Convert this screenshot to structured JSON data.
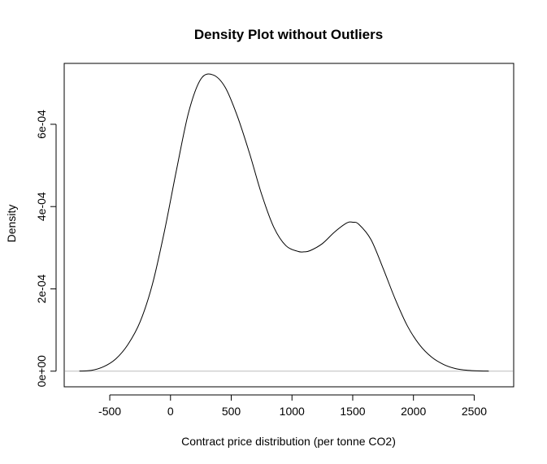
{
  "chart_data": {
    "type": "line",
    "title": "Density Plot without Outliers",
    "xlabel": "Contract price distribution (per tonne CO2)",
    "ylabel": "Density",
    "xlim": [
      -875,
      2825
    ],
    "ylim": [
      -3.8e-05,
      0.000748
    ],
    "x_ticks": [
      -500,
      0,
      500,
      1000,
      1500,
      2000,
      2500
    ],
    "x_tick_labels": [
      "-500",
      "0",
      "500",
      "1000",
      "1500",
      "2000",
      "2500"
    ],
    "y_ticks": [
      0,
      0.0002,
      0.0004,
      0.0006
    ],
    "y_tick_labels": [
      "0e+00",
      "2e-04",
      "4e-04",
      "6e-04"
    ],
    "baseline": {
      "y": 0,
      "color": "#bebebe"
    },
    "grid": false,
    "series": [
      {
        "color": "#000000",
        "x": [
          -750,
          -650,
          -550,
          -450,
          -350,
          -250,
          -150,
          -50,
          50,
          150,
          250,
          350,
          450,
          550,
          650,
          750,
          850,
          950,
          1050,
          1100,
          1150,
          1250,
          1350,
          1450,
          1500,
          1550,
          1650,
          1750,
          1850,
          1950,
          2050,
          2150,
          2250,
          2350,
          2450,
          2550,
          2620
        ],
        "y": [
          2e-07,
          2e-06,
          1.1e-05,
          3e-05,
          6.5e-05,
          0.00012,
          0.00021,
          0.00034,
          0.00049,
          0.00063,
          0.00071,
          0.00072,
          0.00069,
          0.00062,
          0.00053,
          0.00043,
          0.00035,
          0.000305,
          0.000291,
          0.00029,
          0.000293,
          0.00031,
          0.000338,
          0.00036,
          0.000362,
          0.000357,
          0.00032,
          0.00025,
          0.000175,
          0.00011,
          6.4e-05,
          3.4e-05,
          1.6e-05,
          6e-06,
          2e-06,
          6e-07,
          1e-07
        ]
      }
    ]
  }
}
